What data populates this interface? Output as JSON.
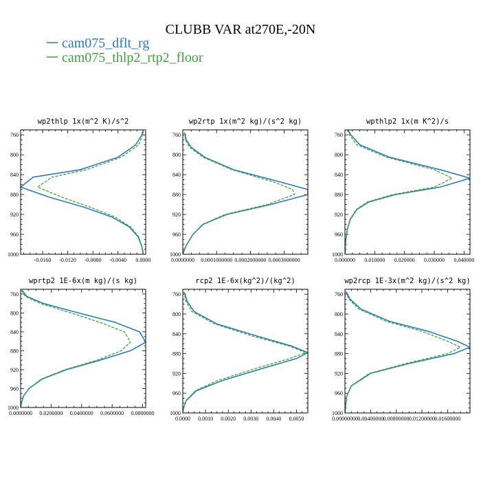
{
  "figure": {
    "title": "CLUBB VAR at270E,-20N",
    "legend": [
      {
        "label": "cam075_dflt_rg",
        "color": "#2b7bb9",
        "style": "solid"
      },
      {
        "label": "cam075_thlp2_rtp2_floor",
        "color": "#3aa33a",
        "style": "dashed"
      }
    ]
  },
  "chart_data": [
    {
      "type": "line",
      "title": "wp2thlp   1x(m^2 K)/s^2",
      "xlim": [
        -0.0195,
        0.0004
      ],
      "ylim": [
        1000,
        750
      ],
      "ylabel": "",
      "xlabel": "",
      "xticks": [
        "-0.0160",
        "-0.0120",
        "-0.0080",
        "-0.0040",
        "0.0000"
      ],
      "xtick_values": [
        -0.016,
        -0.012,
        -0.008,
        -0.004,
        0.0
      ],
      "yticks": [
        "760",
        "800",
        "840",
        "880",
        "920",
        "960",
        "1000"
      ],
      "ytick_values": [
        760,
        800,
        840,
        880,
        920,
        960,
        1000
      ],
      "y": [
        750,
        760,
        780,
        805,
        830,
        845,
        865,
        885,
        905,
        925,
        945,
        965,
        985,
        1000
      ],
      "series": [
        {
          "name": "cam075_dflt_rg",
          "x": [
            0.0,
            -0.0002,
            -0.0012,
            -0.004,
            -0.01,
            -0.0175,
            -0.0195,
            -0.015,
            -0.0095,
            -0.005,
            -0.0022,
            -0.0008,
            -0.0002,
            0.0
          ]
        },
        {
          "name": "cam075_thlp2_rtp2_floor",
          "x": [
            0.0,
            -0.0001,
            -0.0007,
            -0.0035,
            -0.009,
            -0.0145,
            -0.0168,
            -0.013,
            -0.0085,
            -0.0045,
            -0.002,
            -0.0007,
            -0.0002,
            0.0
          ]
        }
      ]
    },
    {
      "type": "line",
      "title": "wp2rtp   1x(m^2 kg)/(s^2 kg)",
      "xlim": [
        0.0,
        0.00037
      ],
      "ylim": [
        1000,
        750
      ],
      "ylabel": "",
      "xlabel": "",
      "xticks": [
        "0.0000000",
        "0.0001000000",
        "0.0002000000",
        "0.0003000000"
      ],
      "xtick_values": [
        0.0,
        0.0001,
        0.0002,
        0.0003
      ],
      "yticks": [
        "760",
        "800",
        "840",
        "880",
        "920",
        "960",
        "1000"
      ],
      "ytick_values": [
        760,
        800,
        840,
        880,
        920,
        960,
        1000
      ],
      "y": [
        755,
        770,
        785,
        805,
        830,
        855,
        870,
        880,
        900,
        920,
        940,
        960,
        985,
        1000
      ],
      "series": [
        {
          "name": "cam075_dflt_rg",
          "x": [
            5e-06,
            1e-05,
            2.5e-05,
            6.5e-05,
            0.00015,
            0.00029,
            0.00037,
            0.00037,
            0.00026,
            0.00013,
            6e-05,
            3e-05,
            8e-06,
            0.0
          ]
        },
        {
          "name": "cam075_thlp2_rtp2_floor",
          "x": [
            4e-06,
            8e-06,
            2e-05,
            6e-05,
            0.000145,
            0.00027,
            0.000325,
            0.00033,
            0.00025,
            0.000125,
            5.8e-05,
            3e-05,
            8e-06,
            0.0
          ]
        }
      ]
    },
    {
      "type": "line",
      "title": "wpthlp2   1x(m K^2)/s",
      "xlim": [
        0.0,
        0.042
      ],
      "ylim": [
        1000,
        750
      ],
      "ylabel": "",
      "xlabel": "",
      "xticks": [
        "0.000000",
        "0.010000",
        "0.020000",
        "0.030000",
        "0.040000"
      ],
      "xtick_values": [
        0.0,
        0.01,
        0.02,
        0.03,
        0.04
      ],
      "yticks": [
        "760",
        "800",
        "840",
        "880",
        "920",
        "960",
        "1000"
      ],
      "ytick_values": [
        760,
        800,
        840,
        880,
        920,
        960,
        1000
      ],
      "y": [
        750,
        760,
        780,
        805,
        830,
        847,
        865,
        880,
        895,
        910,
        930,
        950,
        970,
        985,
        1000
      ],
      "series": [
        {
          "name": "cam075_dflt_rg",
          "x": [
            0.001,
            0.002,
            0.005,
            0.015,
            0.032,
            0.042,
            0.032,
            0.017,
            0.008,
            0.004,
            0.0018,
            0.0008,
            0.0003,
            0.0001,
            0.0
          ]
        },
        {
          "name": "cam075_thlp2_rtp2_floor",
          "x": [
            0.0008,
            0.0015,
            0.004,
            0.014,
            0.03,
            0.036,
            0.03,
            0.016,
            0.0075,
            0.0038,
            0.0017,
            0.0008,
            0.0003,
            0.0001,
            0.0
          ]
        }
      ]
    },
    {
      "type": "line",
      "title": "wprtp2   1E-6x(m kg)/(s kg)",
      "xlim": [
        0.0,
        0.082
      ],
      "ylim": [
        1000,
        750
      ],
      "ylabel": "",
      "xlabel": "",
      "xticks": [
        "0.0000000",
        "0.0200000",
        "0.0400000",
        "0.0600000",
        "0.0800000"
      ],
      "xtick_values": [
        0.0,
        0.02,
        0.04,
        0.06,
        0.08
      ],
      "yticks": [
        "760",
        "800",
        "840",
        "880",
        "920",
        "960",
        "1000"
      ],
      "ytick_values": [
        760,
        800,
        840,
        880,
        920,
        960,
        1000
      ],
      "y": [
        752,
        765,
        780,
        800,
        820,
        840,
        862,
        880,
        900,
        920,
        940,
        960,
        975,
        990,
        1000
      ],
      "series": [
        {
          "name": "cam075_dflt_rg",
          "x": [
            0.001,
            0.004,
            0.015,
            0.038,
            0.062,
            0.078,
            0.082,
            0.072,
            0.052,
            0.03,
            0.014,
            0.0055,
            0.002,
            0.0005,
            0.0
          ]
        },
        {
          "name": "cam075_thlp2_rtp2_floor",
          "x": [
            0.0005,
            0.003,
            0.013,
            0.033,
            0.052,
            0.068,
            0.072,
            0.066,
            0.05,
            0.029,
            0.0135,
            0.0055,
            0.002,
            0.0005,
            0.0
          ]
        }
      ]
    },
    {
      "type": "line",
      "title": "rcp2   1E-6x(kg^2)/(kg^2)",
      "xlim": [
        0.0,
        0.0055
      ],
      "ylim": [
        1000,
        750
      ],
      "ylabel": "",
      "xlabel": "",
      "xticks": [
        "0.0000",
        "0.0010",
        "0.0020",
        "0.0030",
        "0.0040",
        "0.0050"
      ],
      "xtick_values": [
        0.0,
        0.001,
        0.002,
        0.003,
        0.004,
        0.005
      ],
      "yticks": [
        "760",
        "800",
        "840",
        "880",
        "920",
        "960",
        "1000"
      ],
      "ytick_values": [
        760,
        800,
        840,
        880,
        920,
        960,
        1000
      ],
      "y": [
        755,
        775,
        795,
        820,
        845,
        865,
        878,
        890,
        910,
        935,
        955,
        975,
        990,
        1000
      ],
      "series": [
        {
          "name": "cam075_dflt_rg",
          "x": [
            5e-05,
            0.0002,
            0.0005,
            0.0015,
            0.0033,
            0.0048,
            0.0055,
            0.005,
            0.0035,
            0.0017,
            0.0006,
            0.00015,
            3e-05,
            0.0
          ]
        },
        {
          "name": "cam075_thlp2_rtp2_floor",
          "x": [
            4e-05,
            0.00015,
            0.0004,
            0.0014,
            0.0031,
            0.0047,
            0.0054,
            0.0047,
            0.0032,
            0.0015,
            0.00055,
            0.00015,
            3e-05,
            0.0
          ]
        }
      ]
    },
    {
      "type": "line",
      "title": "wp2rcp   1E-3x(m^2 kg)/(s^2 kg)",
      "xlim": [
        0.0,
        0.0195
      ],
      "ylim": [
        1000,
        750
      ],
      "ylabel": "",
      "xlabel": "",
      "xticks": [
        "0.00000000",
        "0.00400000",
        "0.00800000",
        "0.01200000",
        "0.01600000"
      ],
      "xtick_values": [
        0.0,
        0.004,
        0.008,
        0.012,
        0.016
      ],
      "yticks": [
        "760",
        "800",
        "840",
        "880",
        "920",
        "960",
        "1000"
      ],
      "ytick_values": [
        760,
        800,
        840,
        880,
        920,
        960,
        1000
      ],
      "y": [
        755,
        770,
        790,
        815,
        835,
        855,
        867,
        880,
        900,
        920,
        945,
        965,
        985,
        1000
      ],
      "series": [
        {
          "name": "cam075_dflt_rg",
          "x": [
            0.0002,
            0.0008,
            0.0025,
            0.007,
            0.013,
            0.0175,
            0.0195,
            0.017,
            0.01,
            0.004,
            0.001,
            0.0003,
            0.0001,
            0.0
          ]
        },
        {
          "name": "cam075_thlp2_rtp2_floor",
          "x": [
            0.0001,
            0.0006,
            0.0022,
            0.0065,
            0.012,
            0.016,
            0.018,
            0.016,
            0.0095,
            0.0038,
            0.001,
            0.0003,
            0.0001,
            0.0
          ]
        }
      ]
    }
  ]
}
